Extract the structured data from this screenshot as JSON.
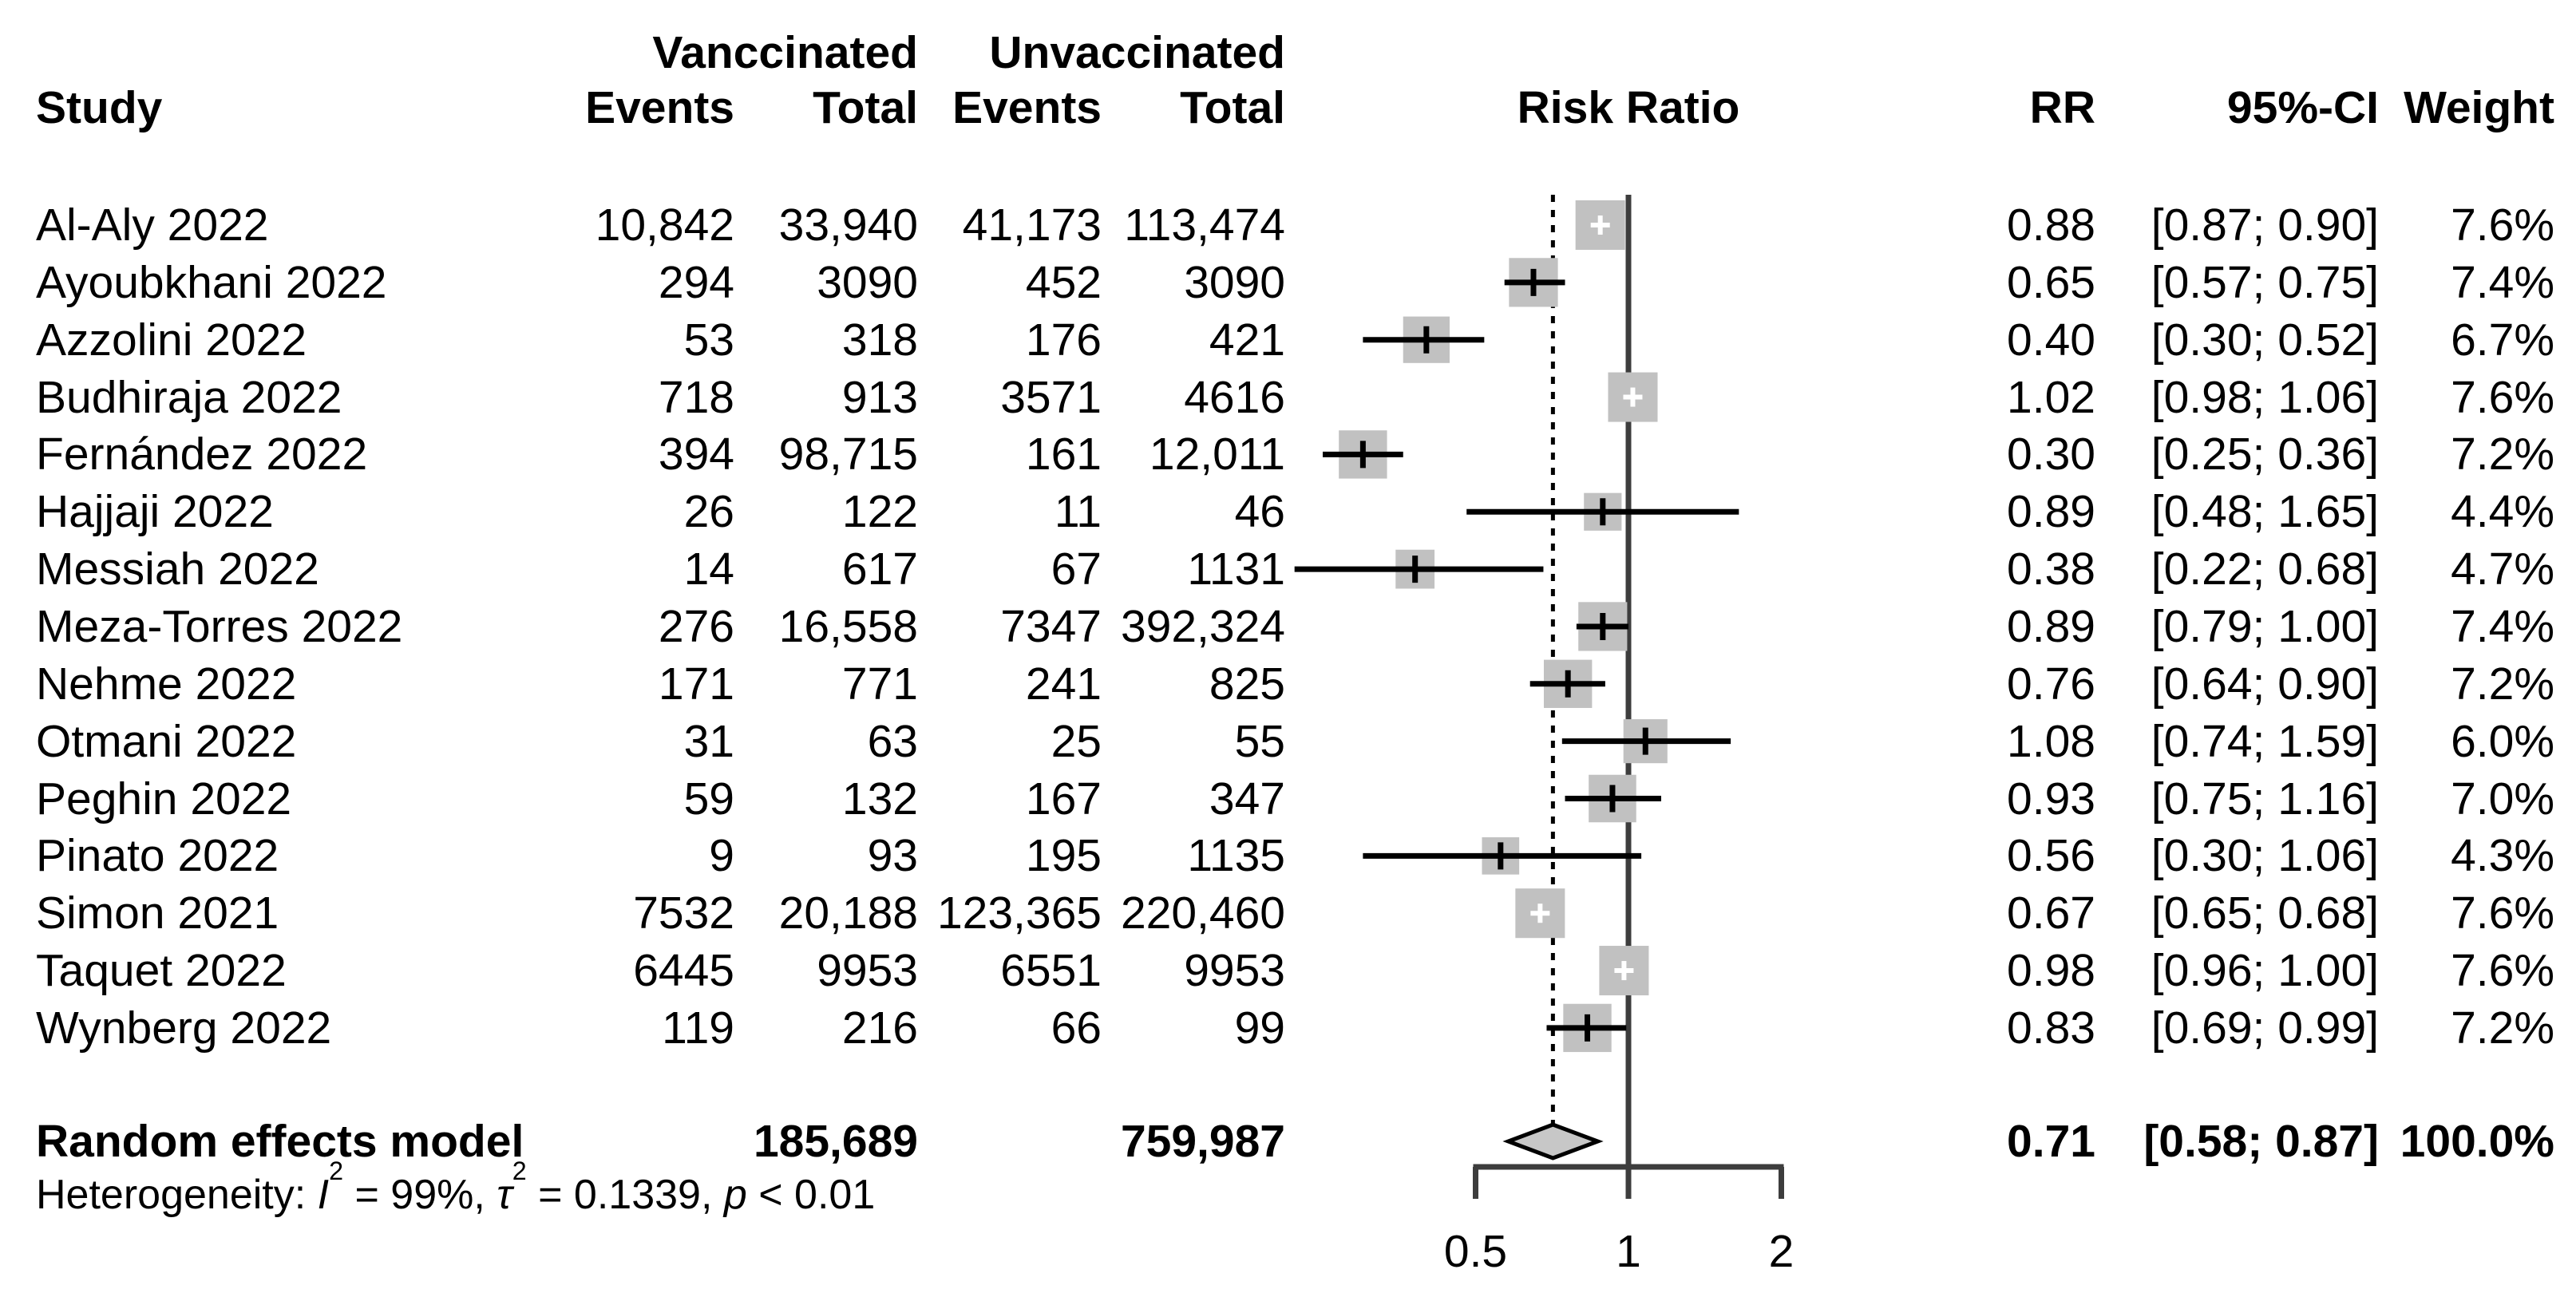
{
  "header": {
    "study": "Study",
    "group_vaccinated": "Vanccinated",
    "group_unvaccinated": "Unvaccinated",
    "events1": "Events",
    "total1": "Total",
    "events2": "Events",
    "total2": "Total",
    "risk_ratio": "Risk Ratio",
    "rr": "RR",
    "ci": "95%-CI",
    "weight": "Weight"
  },
  "colors": {
    "square": "#c1c1c1",
    "diamond_fill": "#c7c7c7",
    "ref_line": "#3d3d3d",
    "axis": "#3d3d3d",
    "ci_line": "#000000",
    "dashed_line": "#000000",
    "text": "#000000"
  },
  "chart_data": {
    "type": "forest_plot",
    "title": "Risk Ratio",
    "x_axis": {
      "scale": "log",
      "ticks": [
        0.5,
        1,
        2
      ],
      "tick_labels": [
        "0.5",
        "1",
        "2"
      ],
      "reference_line": 1.0,
      "pooled_dashed_line": 0.71
    },
    "studies": [
      {
        "name": "Al-Aly 2022",
        "vacc_events": "10,842",
        "vacc_total": "33,940",
        "unvacc_events": "41,173",
        "unvacc_total": "113,474",
        "rr": 0.88,
        "ci_low": 0.87,
        "ci_high": 0.9,
        "rr_text": "0.88",
        "ci_text": "[0.87; 0.90]",
        "weight": 7.6,
        "weight_text": "7.6%"
      },
      {
        "name": "Ayoubkhani 2022",
        "vacc_events": "294",
        "vacc_total": "3090",
        "unvacc_events": "452",
        "unvacc_total": "3090",
        "rr": 0.65,
        "ci_low": 0.57,
        "ci_high": 0.75,
        "rr_text": "0.65",
        "ci_text": "[0.57; 0.75]",
        "weight": 7.4,
        "weight_text": "7.4%"
      },
      {
        "name": "Azzolini 2022",
        "vacc_events": "53",
        "vacc_total": "318",
        "unvacc_events": "176",
        "unvacc_total": "421",
        "rr": 0.4,
        "ci_low": 0.3,
        "ci_high": 0.52,
        "rr_text": "0.40",
        "ci_text": "[0.30; 0.52]",
        "weight": 6.7,
        "weight_text": "6.7%"
      },
      {
        "name": "Budhiraja 2022",
        "vacc_events": "718",
        "vacc_total": "913",
        "unvacc_events": "3571",
        "unvacc_total": "4616",
        "rr": 1.02,
        "ci_low": 0.98,
        "ci_high": 1.06,
        "rr_text": "1.02",
        "ci_text": "[0.98; 1.06]",
        "weight": 7.6,
        "weight_text": "7.6%"
      },
      {
        "name": "Fernández 2022",
        "vacc_events": "394",
        "vacc_total": "98,715",
        "unvacc_events": "161",
        "unvacc_total": "12,011",
        "rr": 0.3,
        "ci_low": 0.25,
        "ci_high": 0.36,
        "rr_text": "0.30",
        "ci_text": "[0.25; 0.36]",
        "weight": 7.2,
        "weight_text": "7.2%"
      },
      {
        "name": "Hajjaji 2022",
        "vacc_events": "26",
        "vacc_total": "122",
        "unvacc_events": "11",
        "unvacc_total": "46",
        "rr": 0.89,
        "ci_low": 0.48,
        "ci_high": 1.65,
        "rr_text": "0.89",
        "ci_text": "[0.48; 1.65]",
        "weight": 4.4,
        "weight_text": "4.4%"
      },
      {
        "name": "Messiah 2022",
        "vacc_events": "14",
        "vacc_total": "617",
        "unvacc_events": "67",
        "unvacc_total": "1131",
        "rr": 0.38,
        "ci_low": 0.22,
        "ci_high": 0.68,
        "rr_text": "0.38",
        "ci_text": "[0.22; 0.68]",
        "weight": 4.7,
        "weight_text": "4.7%"
      },
      {
        "name": "Meza-Torres 2022",
        "vacc_events": "276",
        "vacc_total": "16,558",
        "unvacc_events": "7347",
        "unvacc_total": "392,324",
        "rr": 0.89,
        "ci_low": 0.79,
        "ci_high": 1.0,
        "rr_text": "0.89",
        "ci_text": "[0.79; 1.00]",
        "weight": 7.4,
        "weight_text": "7.4%"
      },
      {
        "name": "Nehme 2022",
        "vacc_events": "171",
        "vacc_total": "771",
        "unvacc_events": "241",
        "unvacc_total": "825",
        "rr": 0.76,
        "ci_low": 0.64,
        "ci_high": 0.9,
        "rr_text": "0.76",
        "ci_text": "[0.64; 0.90]",
        "weight": 7.2,
        "weight_text": "7.2%"
      },
      {
        "name": "Otmani 2022",
        "vacc_events": "31",
        "vacc_total": "63",
        "unvacc_events": "25",
        "unvacc_total": "55",
        "rr": 1.08,
        "ci_low": 0.74,
        "ci_high": 1.59,
        "rr_text": "1.08",
        "ci_text": "[0.74; 1.59]",
        "weight": 6.0,
        "weight_text": "6.0%"
      },
      {
        "name": "Peghin 2022",
        "vacc_events": "59",
        "vacc_total": "132",
        "unvacc_events": "167",
        "unvacc_total": "347",
        "rr": 0.93,
        "ci_low": 0.75,
        "ci_high": 1.16,
        "rr_text": "0.93",
        "ci_text": "[0.75; 1.16]",
        "weight": 7.0,
        "weight_text": "7.0%"
      },
      {
        "name": "Pinato 2022",
        "vacc_events": "9",
        "vacc_total": "93",
        "unvacc_events": "195",
        "unvacc_total": "1135",
        "rr": 0.56,
        "ci_low": 0.3,
        "ci_high": 1.06,
        "rr_text": "0.56",
        "ci_text": "[0.30; 1.06]",
        "weight": 4.3,
        "weight_text": "4.3%"
      },
      {
        "name": "Simon 2021",
        "vacc_events": "7532",
        "vacc_total": "20,188",
        "unvacc_events": "123,365",
        "unvacc_total": "220,460",
        "rr": 0.67,
        "ci_low": 0.65,
        "ci_high": 0.68,
        "rr_text": "0.67",
        "ci_text": "[0.65; 0.68]",
        "weight": 7.6,
        "weight_text": "7.6%"
      },
      {
        "name": "Taquet 2022",
        "vacc_events": "6445",
        "vacc_total": "9953",
        "unvacc_events": "6551",
        "unvacc_total": "9953",
        "rr": 0.98,
        "ci_low": 0.96,
        "ci_high": 1.0,
        "rr_text": "0.98",
        "ci_text": "[0.96; 1.00]",
        "weight": 7.6,
        "weight_text": "7.6%"
      },
      {
        "name": "Wynberg 2022",
        "vacc_events": "119",
        "vacc_total": "216",
        "unvacc_events": "66",
        "unvacc_total": "99",
        "rr": 0.83,
        "ci_low": 0.69,
        "ci_high": 0.99,
        "rr_text": "0.83",
        "ci_text": "[0.69; 0.99]",
        "weight": 7.2,
        "weight_text": "7.2%"
      }
    ],
    "summary": {
      "label": "Random effects model",
      "vacc_total": "185,689",
      "unvacc_total": "759,987",
      "rr": 0.71,
      "ci_low": 0.58,
      "ci_high": 0.87,
      "rr_text": "0.71",
      "ci_text": "[0.58; 0.87]",
      "weight_text": "100.0%"
    },
    "heterogeneity": {
      "prefix": "Heterogeneity: ",
      "i_symbol": "I",
      "i_sup": "2",
      "i_rest": " = 99%, ",
      "tau_symbol": "τ",
      "tau_sup": "2",
      "tau_rest": " = 0.1339, ",
      "p_symbol": "p",
      "p_rest": " < 0.01"
    }
  }
}
